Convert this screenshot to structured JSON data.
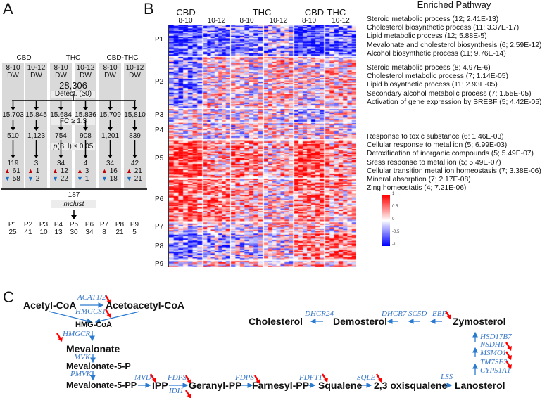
{
  "panel_labels": {
    "a": "A",
    "b": "B",
    "c": "C"
  },
  "panel_a": {
    "groups": [
      "CBD",
      "THC",
      "CBD-THC"
    ],
    "columns": [
      {
        "time": "8-10",
        "unit": "DW",
        "detected": "15,703",
        "fc": "510",
        "sig": "119",
        "up": "61",
        "down": "58"
      },
      {
        "time": "10-12",
        "unit": "DW",
        "detected": "15,845",
        "fc": "1,123",
        "sig": "3",
        "up": "1",
        "down": "2"
      },
      {
        "time": "8-10",
        "unit": "DW",
        "detected": "15,684",
        "fc": "754",
        "sig": "34",
        "up": "12",
        "down": "22"
      },
      {
        "time": "10-12",
        "unit": "DW",
        "detected": "15,836",
        "fc": "908",
        "sig": "4",
        "up": "3",
        "down": "1"
      },
      {
        "time": "8-10",
        "unit": "DW",
        "detected": "15,709",
        "fc": "1,201",
        "sig": "34",
        "up": "16",
        "down": "18"
      },
      {
        "time": "10-12",
        "unit": "DW",
        "detected": "15,810",
        "fc": "839",
        "sig": "42",
        "up": "21",
        "down": "21"
      }
    ],
    "total": "28,306",
    "detect_label": "Detect. (≥0)",
    "fc_label": "FC ≥ 1.3",
    "p_label_italic": "p",
    "p_label_rest": "(BH) ≤ 0.05",
    "union": "187",
    "method": "mclust",
    "clusters": [
      {
        "name": "P1",
        "count": "25"
      },
      {
        "name": "P2",
        "count": "41"
      },
      {
        "name": "P3",
        "count": "10"
      },
      {
        "name": "P4",
        "count": "13"
      },
      {
        "name": "P5",
        "count": "30"
      },
      {
        "name": "P6",
        "count": "34"
      },
      {
        "name": "P7",
        "count": "8"
      },
      {
        "name": "P8",
        "count": "21"
      },
      {
        "name": "P9",
        "count": "5"
      }
    ],
    "up_color": "#c00000",
    "down_color": "#1f6fc0"
  },
  "heatmap": {
    "groups": [
      "CBD",
      "THC",
      "CBD-THC"
    ],
    "subcolumns": [
      "8-10",
      "10-12",
      "8-10",
      "10-12",
      "8-10",
      "10-12"
    ],
    "colorbar_ticks": [
      "1",
      "0.5",
      "0",
      "-0.5",
      "-1"
    ],
    "colors": {
      "high": "#ff0000",
      "mid": "#ffffff",
      "low": "#0000ff"
    }
  },
  "pathways": {
    "title": "Enriched Pathway",
    "groups": [
      [
        "Steroid metabolic process (12; 2.41E-13)",
        "Cholesterol biosynthetic process (11; 3.37E-17)",
        "Lipid metabolic process (12; 5.88E-5)",
        "Mevalonate and cholesterol biosynthesis (6; 2.59E-12)",
        "Alcohol biosynthetic process (11; 9.76E-14)"
      ],
      [
        "Steroid metabolic process (8; 4.97E-6)",
        "Cholesterol metabolic process (7; 1.14E-05)",
        "Lipid biosynthetic process (11; 2.93E-05)",
        "Secondary alcohol metabolic process (7; 1.55E-05)",
        "Activation of gene expression by SREBF (5; 4.42E-05)"
      ],
      [
        "Response to toxic substance (6: 1.46E-03)",
        "Cellular response to metal ion (5; 6.99E-03)",
        "Detoxification of inorganic compounds (5; 5.49E-07)",
        "Sress response to metal ion (5; 5.49E-07)",
        "Cellular transition metal ion  homeostasis (7; 3.38E-06)",
        "Mineral absorption (7; 2.17E-08)",
        "Zing homeostatis (4; 7.21E-06)"
      ]
    ]
  },
  "pathway_c": {
    "nodes": {
      "acetyl_coa": "Acetyl-CoA",
      "acetoacetyl_coa": "Acetoacetyl-CoA",
      "hmg_coa": "HMG-CoA",
      "mevalonate": "Mevalonate",
      "mevalonate_5p": "Mevalonate-5-P",
      "mevalonate_5pp": "Mevalonate-5-PP",
      "ipp": "IPP",
      "geranyl_pp": "Geranyl-PP",
      "farnesyl_pp": "Farnesyl-PP",
      "squalene": "Squalene",
      "oxisqualene": "2,3 oxisqualene",
      "lanosterol": "Lanosterol",
      "zymosterol": "Zymosterol",
      "demosterol": "Demosterol",
      "cholesterol": "Cholesterol"
    },
    "enzymes": {
      "acat": "ACAT1/2",
      "hmgcs1": "HMGCS1",
      "hmgcr": "HMGCR",
      "mvk": "MVK",
      "pmvk": "PMVK",
      "mvd": "MVD",
      "fdps1": "FDPS",
      "idi1": "IDI1",
      "fdps2": "FDPS",
      "fdft1": "FDFT1",
      "sqle": "SQLE",
      "lss": "LSS",
      "hsd17b7": "HSD17B7",
      "nsdhl": "NSDHL",
      "msmo1": "MSMO1",
      "tm7sf2": "TM7SF2",
      "cyp51a1": "CYP51A1",
      "ebp": "EBP",
      "sc5d": "SC5D",
      "dhcr7": "DHCR7",
      "dhcr24": "DHCR24"
    },
    "downregulated": [
      "ACAT1/2",
      "HMGCS1",
      "HMGCR",
      "MVD",
      "FDPS",
      "IDI1",
      "FDFT1",
      "SQLE",
      "NSDHL",
      "MSMO1",
      "TM7SF2",
      "EBP"
    ],
    "enzyme_color": "#3a78c8",
    "arrow_color": "#2a7ad0",
    "down_marker_color": "#ff0000"
  }
}
